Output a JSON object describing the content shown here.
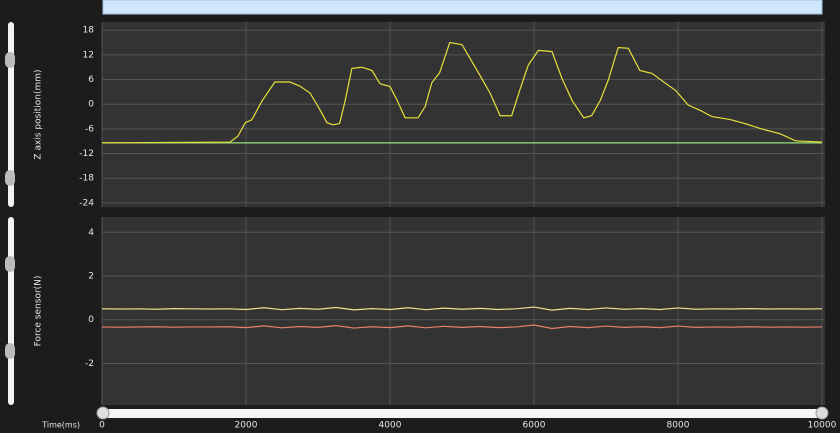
{
  "chart_data": [
    {
      "type": "line",
      "ylabel": "Z axis position(mm)",
      "xlim": [
        0,
        10000
      ],
      "xticks": [
        0,
        2000,
        4000,
        6000,
        8000,
        10000
      ],
      "ylim": [
        -25,
        20
      ],
      "yticks": [
        18,
        12,
        6,
        0,
        -6,
        -12,
        -18,
        -24
      ],
      "grid": true,
      "series": [
        {
          "color": "#9be07a",
          "x": [
            0,
            10000
          ],
          "values": [
            -9.4,
            -9.4
          ]
        },
        {
          "color": "#e8e03a",
          "x": [
            0,
            1780,
            1890,
            1990,
            2080,
            2220,
            2400,
            2610,
            2750,
            2890,
            3000,
            3125,
            3210,
            3300,
            3375,
            3470,
            3610,
            3750,
            3860,
            4000,
            4100,
            4210,
            4390,
            4490,
            4580,
            4690,
            4830,
            5000,
            5110,
            5250,
            5390,
            5530,
            5690,
            5800,
            5920,
            6060,
            6250,
            6390,
            6530,
            6690,
            6800,
            6920,
            7030,
            7170,
            7310,
            7470,
            7640,
            7810,
            7970,
            8140,
            8310,
            8470,
            8720,
            8930,
            9140,
            9420,
            9630,
            10000
          ],
          "values": [
            -9.4,
            -9.2,
            -7.7,
            -4.5,
            -3.8,
            0.7,
            5.4,
            5.4,
            4.4,
            2.7,
            -0.5,
            -4.5,
            -5,
            -4.7,
            0.7,
            8.7,
            9,
            8.2,
            5,
            4.3,
            0.9,
            -3.3,
            -3.3,
            -0.5,
            5.2,
            7.7,
            15,
            14.5,
            11.2,
            7,
            2.7,
            -2.8,
            -2.8,
            3.3,
            9.5,
            13.1,
            12.8,
            6.2,
            0.9,
            -3.3,
            -2.8,
            0.9,
            5.8,
            13.8,
            13.6,
            8.2,
            7.5,
            5.3,
            3.3,
            -0.2,
            -1.5,
            -3,
            -3.7,
            -4.7,
            -5.9,
            -7.2,
            -8.9,
            -9.2
          ]
        }
      ]
    },
    {
      "type": "line",
      "ylabel": "Force sensor(N)",
      "xlabel": "Time(ms)",
      "xlim": [
        0,
        10000
      ],
      "xticks": [
        0,
        2000,
        4000,
        6000,
        8000,
        10000
      ],
      "ylim": [
        -3.9,
        4.7
      ],
      "yticks": [
        4,
        2,
        0,
        -2
      ],
      "grid": true,
      "series": [
        {
          "color": "#ece08a",
          "x": [
            0,
            250,
            500,
            750,
            1000,
            1250,
            1500,
            1750,
            2000,
            2250,
            2500,
            2750,
            3000,
            3250,
            3500,
            3750,
            4000,
            4250,
            4500,
            4750,
            5000,
            5250,
            5500,
            5750,
            6000,
            6250,
            6500,
            6750,
            7000,
            7250,
            7500,
            7750,
            8000,
            8250,
            8500,
            8750,
            9000,
            9250,
            9500,
            9750,
            10000
          ],
          "values": [
            0.5,
            0.49,
            0.5,
            0.48,
            0.51,
            0.5,
            0.49,
            0.5,
            0.47,
            0.55,
            0.46,
            0.52,
            0.48,
            0.56,
            0.45,
            0.51,
            0.47,
            0.55,
            0.46,
            0.53,
            0.48,
            0.52,
            0.47,
            0.5,
            0.58,
            0.44,
            0.52,
            0.47,
            0.54,
            0.48,
            0.51,
            0.47,
            0.54,
            0.48,
            0.5,
            0.49,
            0.51,
            0.49,
            0.5,
            0.49,
            0.5
          ]
        },
        {
          "color": "#e8806a",
          "x": [
            0,
            250,
            500,
            750,
            1000,
            1250,
            1500,
            1750,
            2000,
            2250,
            2500,
            2750,
            3000,
            3250,
            3500,
            3750,
            4000,
            4250,
            4500,
            4750,
            5000,
            5250,
            5500,
            5750,
            6000,
            6250,
            6500,
            6750,
            7000,
            7250,
            7500,
            7750,
            8000,
            8250,
            8500,
            8750,
            9000,
            9250,
            9500,
            9750,
            10000
          ],
          "values": [
            -0.33,
            -0.34,
            -0.33,
            -0.32,
            -0.34,
            -0.33,
            -0.33,
            -0.32,
            -0.36,
            -0.28,
            -0.37,
            -0.31,
            -0.35,
            -0.27,
            -0.38,
            -0.32,
            -0.36,
            -0.28,
            -0.37,
            -0.3,
            -0.35,
            -0.31,
            -0.36,
            -0.33,
            -0.24,
            -0.4,
            -0.31,
            -0.36,
            -0.29,
            -0.35,
            -0.32,
            -0.36,
            -0.29,
            -0.35,
            -0.33,
            -0.34,
            -0.32,
            -0.34,
            -0.33,
            -0.34,
            -0.33
          ]
        }
      ]
    }
  ]
}
